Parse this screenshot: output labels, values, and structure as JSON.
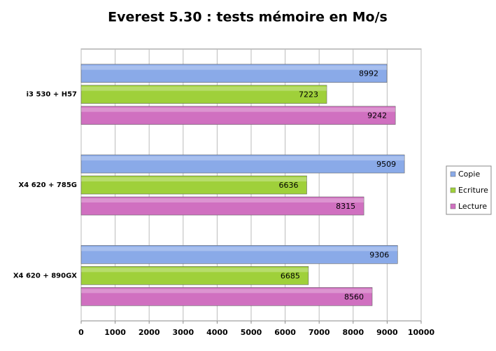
{
  "chart_data": {
    "type": "hbar",
    "title": "Everest 5.30 : tests mémoire en Mo/s",
    "categories": [
      "i3 530 + H57",
      "X4 620 + 785G",
      "X4 620 + 890GX"
    ],
    "series": [
      {
        "name": "Copie",
        "color": "#8aaae8",
        "values": [
          8992,
          9509,
          9306
        ]
      },
      {
        "name": "Ecriture",
        "color": "#9fd03a",
        "values": [
          7223,
          6636,
          6685
        ]
      },
      {
        "name": "Lecture",
        "color": "#d070c0",
        "values": [
          9242,
          8315,
          8560
        ]
      }
    ],
    "xlim": [
      0,
      10000
    ],
    "xticks": [
      0,
      1000,
      2000,
      3000,
      4000,
      5000,
      6000,
      7000,
      8000,
      9000,
      10000
    ],
    "grid": true,
    "legend": "right"
  }
}
